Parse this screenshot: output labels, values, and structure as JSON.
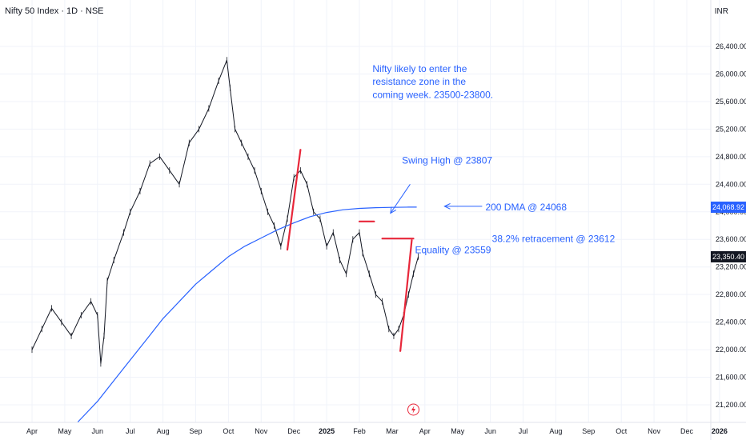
{
  "header": {
    "title": "Nifty 50 Index · 1D · NSE",
    "currency": "INR"
  },
  "price_badges": [
    {
      "label": "24,068.92",
      "value": 24068.92,
      "color": "#2962ff"
    },
    {
      "label": "23,350.40",
      "value": 23350.4,
      "color": "#131722"
    }
  ],
  "event_marker": {
    "icon": "flash-icon",
    "x": "Mar 2025"
  },
  "chart_data": {
    "type": "line",
    "title": "Nifty 50 Index · 1D · NSE",
    "ylabel": "INR",
    "ylim": [
      20900,
      26900
    ],
    "grid": true,
    "legend": "none",
    "x_ticks": [
      "Apr",
      "May",
      "Jun",
      "Jul",
      "Aug",
      "Sep",
      "Oct",
      "Nov",
      "Dec",
      "2025",
      "Feb",
      "Mar",
      "Apr",
      "May",
      "Jun",
      "Jul",
      "Aug",
      "Sep",
      "Oct",
      "Nov",
      "Dec",
      "2026"
    ],
    "y_ticks": [
      21200,
      21600,
      22000,
      22400,
      22800,
      23200,
      23600,
      24000,
      24400,
      24800,
      25200,
      25600,
      26000,
      26400
    ],
    "y_tick_labels": [
      "21,200.00",
      "21,600.00",
      "22,000.00",
      "22,400.00",
      "22,800.00",
      "23,200.00",
      "23,600.00",
      "24,000.00",
      "24,400.00",
      "24,800.00",
      "25,200.00",
      "25,600.00",
      "26,000.00",
      "26,400.00"
    ],
    "series": [
      {
        "kind": "price",
        "color": "#131722",
        "x": [
          0,
          0.3,
          0.6,
          0.9,
          1.2,
          1.5,
          1.8,
          2.0,
          2.1,
          2.2,
          2.3,
          2.5,
          2.8,
          3.0,
          3.3,
          3.6,
          3.9,
          4.2,
          4.5,
          4.8,
          5.1,
          5.4,
          5.7,
          5.95,
          6.05,
          6.2,
          6.4,
          6.6,
          6.8,
          7.0,
          7.2,
          7.4,
          7.6,
          7.8,
          8.0,
          8.2,
          8.4,
          8.6,
          8.8,
          9.0,
          9.2,
          9.4,
          9.6,
          9.8,
          10.0,
          10.1,
          10.3,
          10.5,
          10.7,
          10.9,
          11.05,
          11.2,
          11.35,
          11.5,
          11.65,
          11.8
        ],
        "y": [
          22000,
          22300,
          22600,
          22400,
          22200,
          22500,
          22700,
          22500,
          21800,
          22200,
          23000,
          23300,
          23700,
          24000,
          24300,
          24700,
          24800,
          24600,
          24400,
          25000,
          25200,
          25500,
          25900,
          26200,
          25800,
          25200,
          25000,
          24800,
          24600,
          24300,
          24000,
          23800,
          23500,
          23900,
          24500,
          24600,
          24400,
          24000,
          23900,
          23500,
          23700,
          23300,
          23100,
          23600,
          23700,
          23400,
          23100,
          22800,
          22700,
          22300,
          22200,
          22300,
          22500,
          22800,
          23100,
          23350
        ]
      },
      {
        "kind": "200dma",
        "color": "#2962ff",
        "x": [
          1.4,
          2.0,
          2.5,
          3.0,
          3.5,
          4.0,
          4.5,
          5.0,
          5.5,
          6.0,
          6.5,
          7.0,
          7.5,
          8.0,
          8.5,
          9.0,
          9.5,
          10.0,
          10.5,
          11.0,
          11.5,
          11.75
        ],
        "y": [
          20950,
          21250,
          21550,
          21850,
          22150,
          22450,
          22700,
          22950,
          23150,
          23350,
          23500,
          23620,
          23740,
          23840,
          23930,
          23990,
          24030,
          24050,
          24060,
          24065,
          24068,
          24068
        ]
      }
    ],
    "trendlines": [
      {
        "color": "#e8273a",
        "x": [
          7.8,
          8.2
        ],
        "y": [
          23450,
          24900
        ]
      },
      {
        "color": "#e8273a",
        "x": [
          11.25,
          11.6
        ],
        "y": [
          21980,
          23590
        ]
      },
      {
        "color": "#e8273a",
        "x": [
          10.0,
          10.45
        ],
        "y": [
          23860,
          23860
        ]
      },
      {
        "color": "#e8273a",
        "x": [
          10.7,
          11.65
        ],
        "y": [
          23612,
          23612
        ]
      }
    ],
    "arrows": [
      {
        "color": "#2962ff",
        "from": [
          11.55,
          24400
        ],
        "to": [
          10.95,
          23980
        ]
      },
      {
        "color": "#2962ff",
        "from": [
          13.75,
          24080
        ],
        "to": [
          12.6,
          24080
        ]
      }
    ],
    "annotations": [
      {
        "text": "Nifty likely to enter the",
        "x": 10.4,
        "y": 26030
      },
      {
        "text": "resistance zone in the",
        "x": 10.4,
        "y": 25840
      },
      {
        "text": "coming week. 23500-23800.",
        "x": 10.4,
        "y": 25650
      },
      {
        "text": "Swing High @ 23807",
        "x": 11.3,
        "y": 24700
      },
      {
        "text": "200 DMA @ 24068",
        "x": 13.85,
        "y": 24020
      },
      {
        "text": "38.2% retracement @ 23612",
        "x": 14.05,
        "y": 23560
      },
      {
        "text": "Equality @ 23559",
        "x": 11.7,
        "y": 23400
      }
    ]
  }
}
